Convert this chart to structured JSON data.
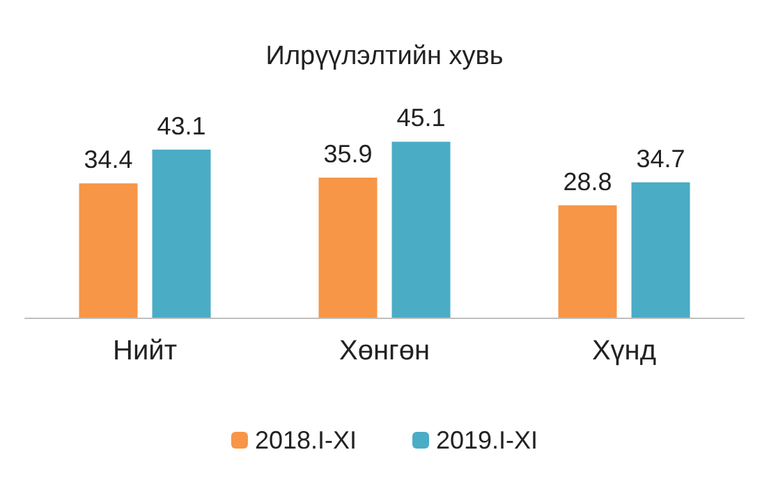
{
  "chart_data": {
    "type": "bar",
    "title": "Илрүүлэлтийн хувь",
    "categories": [
      "Нийт",
      "Хөнгөн",
      "Хүнд"
    ],
    "series": [
      {
        "name": "2018.I-XI",
        "color": "#f79646",
        "values": [
          34.4,
          35.9,
          28.8
        ]
      },
      {
        "name": "2019.I-XI",
        "color": "#4bacc6",
        "values": [
          43.1,
          45.1,
          34.7
        ]
      }
    ],
    "data_labels": true,
    "grid": false,
    "legend": "bottom"
  }
}
